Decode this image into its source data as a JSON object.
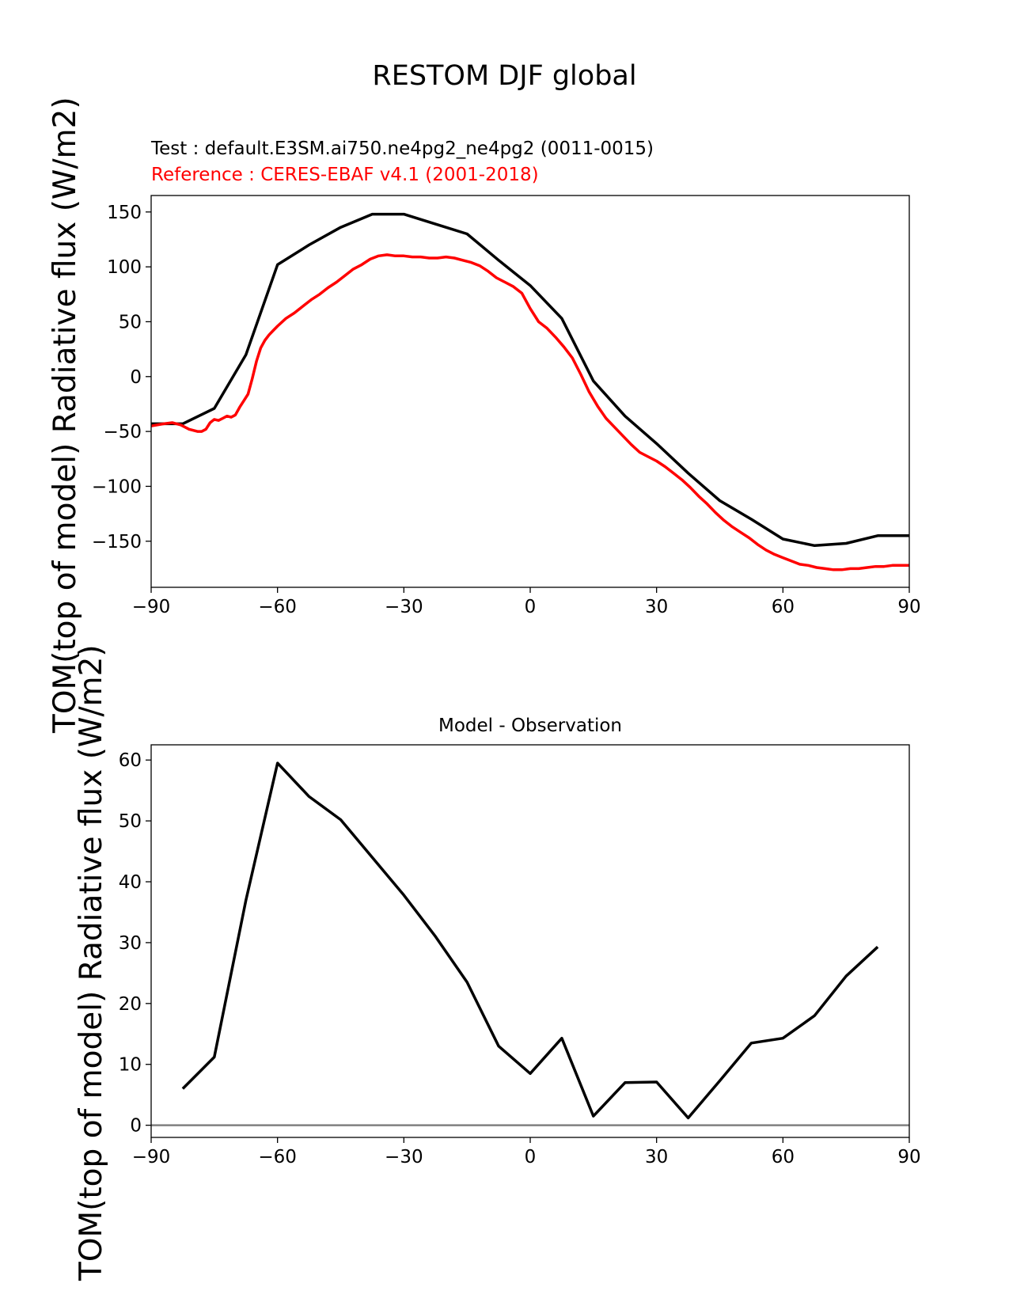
{
  "suptitle": "RESTOM DJF global",
  "chart_data": [
    {
      "type": "line",
      "test_label": "Test : default.E3SM.ai750.ne4pg2_ne4pg2 (0011-0015)",
      "reference_label": "Reference : CERES-EBAF v4.1 (2001-2018)",
      "ylabel": "TOM(top of model) Radiative flux (W/m2)",
      "xlim": [
        -90,
        90
      ],
      "ylim": [
        -192,
        165
      ],
      "xticks": [
        -90,
        -60,
        -30,
        0,
        30,
        60,
        90
      ],
      "yticks": [
        -150,
        -100,
        -50,
        0,
        50,
        100,
        150
      ],
      "series": [
        {
          "color": "#000000",
          "x": [
            -90,
            -82.5,
            -75,
            -67.5,
            -60,
            -52.5,
            -45,
            -37.5,
            -30,
            -22.5,
            -15,
            -7.5,
            0,
            7.5,
            15,
            22.5,
            30,
            37.5,
            45,
            52.5,
            60,
            67.5,
            75,
            82.5,
            90
          ],
          "y": [
            -43,
            -43,
            -29,
            20,
            102,
            120,
            136,
            148,
            148,
            139,
            130,
            106,
            83,
            53,
            -4,
            -36,
            -61,
            -88,
            -113,
            -130,
            -148,
            -154,
            -152,
            -145,
            -145
          ]
        },
        {
          "color": "#ff0000",
          "x": [
            -90,
            -87,
            -85,
            -83,
            -81,
            -79,
            -78,
            -77,
            -76,
            -75,
            -74,
            -73,
            -72,
            -71,
            -70,
            -69,
            -68,
            -67,
            -66,
            -65,
            -64,
            -63,
            -62,
            -61,
            -60,
            -58,
            -56,
            -54,
            -52,
            -50,
            -48,
            -46,
            -44,
            -42,
            -40,
            -38,
            -36,
            -34,
            -32,
            -30,
            -28,
            -26,
            -24,
            -22,
            -20,
            -18,
            -16,
            -14,
            -12,
            -10,
            -8,
            -6,
            -4,
            -2,
            0,
            2,
            4,
            6,
            8,
            10,
            12,
            14,
            16,
            18,
            20,
            22,
            24,
            26,
            28,
            30,
            32,
            34,
            36,
            38,
            40,
            42,
            44,
            46,
            48,
            50,
            52,
            54,
            56,
            58,
            60,
            62,
            64,
            66,
            68,
            70,
            72,
            74,
            76,
            78,
            80,
            82,
            84,
            86,
            88,
            90
          ],
          "y": [
            -45,
            -43,
            -42,
            -44,
            -48,
            -50,
            -50,
            -48,
            -42,
            -39,
            -40,
            -38,
            -36,
            -37,
            -35,
            -28,
            -22,
            -16,
            -2,
            14,
            26,
            33,
            38,
            42,
            46,
            53,
            58,
            64,
            70,
            75,
            81,
            86,
            92,
            98,
            102,
            107,
            110,
            111,
            110,
            110,
            109,
            109,
            108,
            108,
            109,
            108,
            106,
            104,
            101,
            96,
            90,
            86,
            82,
            76,
            62,
            50,
            44,
            36,
            27,
            17,
            2,
            -14,
            -27,
            -38,
            -46,
            -54,
            -62,
            -69,
            -73,
            -77,
            -82,
            -88,
            -94,
            -101,
            -109,
            -116,
            -124,
            -131,
            -137,
            -142,
            -147,
            -153,
            -158,
            -162,
            -165,
            -168,
            -171,
            -172,
            -174,
            -175,
            -176,
            -176,
            -175,
            -175,
            -174,
            -173,
            -173,
            -172,
            -172,
            -172
          ]
        }
      ]
    },
    {
      "type": "line",
      "title": "Model - Observation",
      "ylabel": "TOM(top of model) Radiative flux (W/m2)",
      "xlim": [
        -90,
        90
      ],
      "ylim": [
        -2,
        62.5
      ],
      "xticks": [
        -90,
        -60,
        -30,
        0,
        30,
        60,
        90
      ],
      "yticks": [
        0,
        10,
        20,
        30,
        40,
        50,
        60
      ],
      "zero_line": {
        "y": 0,
        "color": "#808080"
      },
      "series": [
        {
          "color": "#000000",
          "x": [
            -82.5,
            -75,
            -67.5,
            -60,
            -52.5,
            -45,
            -37.5,
            -30,
            -22.5,
            -15,
            -7.5,
            0,
            7.5,
            15,
            22.5,
            30,
            37.5,
            45,
            52.5,
            60,
            67.5,
            75,
            82.5
          ],
          "y": [
            6,
            11.2,
            37,
            59.5,
            54,
            50.2,
            44,
            37.8,
            31,
            23.5,
            13,
            8.5,
            14.3,
            1.5,
            7,
            7.1,
            1.2,
            7.3,
            13.5,
            14.3,
            18,
            24.5,
            29.3
          ]
        }
      ]
    }
  ]
}
